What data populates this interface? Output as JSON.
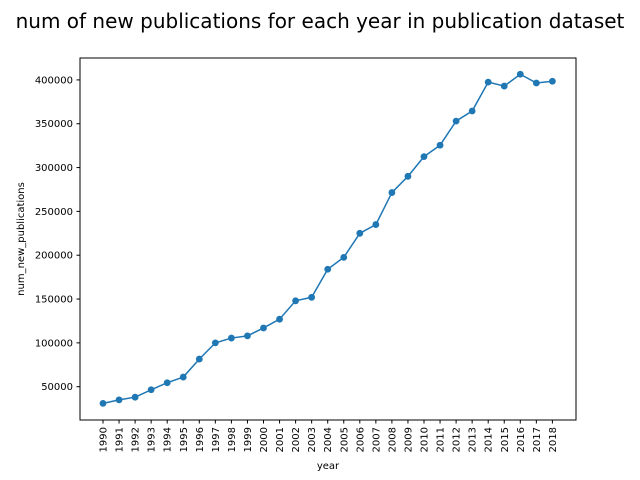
{
  "chart_data": {
    "type": "line",
    "title": "num of new publications for each year in publication dataset",
    "xlabel": "year",
    "ylabel": "num_new_publications",
    "x": [
      "1990",
      "1991",
      "1992",
      "1993",
      "1994",
      "1995",
      "1996",
      "1997",
      "1998",
      "1999",
      "2000",
      "2001",
      "2002",
      "2003",
      "2004",
      "2005",
      "2006",
      "2007",
      "2008",
      "2009",
      "2010",
      "2011",
      "2012",
      "2013",
      "2014",
      "2015",
      "2016",
      "2017",
      "2018"
    ],
    "values": [
      31000,
      35000,
      38000,
      46500,
      54500,
      61000,
      81500,
      100000,
      105500,
      108000,
      117000,
      127000,
      148000,
      152000,
      184000,
      197500,
      225000,
      235000,
      271500,
      290000,
      312500,
      325500,
      353000,
      364500,
      397500,
      393000,
      406500,
      396500,
      398500
    ],
    "yticks": [
      50000,
      100000,
      150000,
      200000,
      250000,
      300000,
      350000,
      400000
    ],
    "ytick_labels": [
      "50000",
      "100000",
      "150000",
      "200000",
      "250000",
      "300000",
      "350000",
      "400000"
    ],
    "ylim": [
      12000,
      425000
    ],
    "grid": false,
    "color": "#1f77b4"
  }
}
